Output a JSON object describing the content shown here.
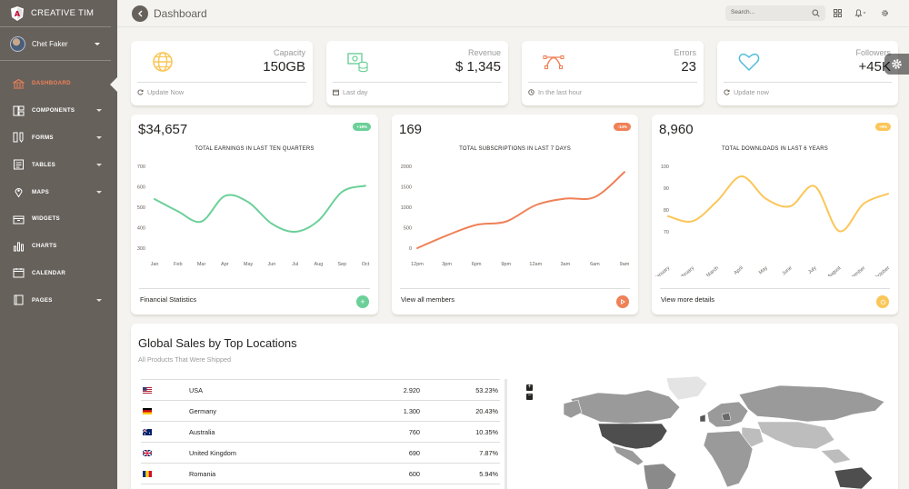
{
  "brand": {
    "name": "CREATIVE TIM",
    "accent": "#ef8157"
  },
  "user": {
    "name": "Chet Faker"
  },
  "sidebar": {
    "items": [
      {
        "label": "DASHBOARD",
        "icon": "bank-icon",
        "active": true,
        "has_caret": false
      },
      {
        "label": "COMPONENTS",
        "icon": "layout-icon",
        "active": false,
        "has_caret": true
      },
      {
        "label": "FORMS",
        "icon": "ruler-pencil-icon",
        "active": false,
        "has_caret": true
      },
      {
        "label": "TABLES",
        "icon": "paper-icon",
        "active": false,
        "has_caret": true
      },
      {
        "label": "MAPS",
        "icon": "pin-icon",
        "active": false,
        "has_caret": true
      },
      {
        "label": "WIDGETS",
        "icon": "box-icon",
        "active": false,
        "has_caret": false
      },
      {
        "label": "CHARTS",
        "icon": "chart-bar-icon",
        "active": false,
        "has_caret": false
      },
      {
        "label": "CALENDAR",
        "icon": "calendar-icon",
        "active": false,
        "has_caret": false
      },
      {
        "label": "PAGES",
        "icon": "book-icon",
        "active": false,
        "has_caret": true
      }
    ]
  },
  "header": {
    "title": "Dashboard",
    "search_placeholder": "Search..."
  },
  "stats": [
    {
      "label": "Capacity",
      "value": "150GB",
      "footer": "Update Now",
      "icon": "globe-icon",
      "icon_color": "#fbc658",
      "footer_icon": "refresh-icon"
    },
    {
      "label": "Revenue",
      "value": "$ 1,345",
      "footer": "Last day",
      "icon": "money-coins-icon",
      "icon_color": "#6bd098",
      "footer_icon": "calendar-icon"
    },
    {
      "label": "Errors",
      "value": "23",
      "footer": "In the last hour",
      "icon": "vector-icon",
      "icon_color": "#ef8157",
      "footer_icon": "clock-icon"
    },
    {
      "label": "Followers",
      "value": "+45K",
      "footer": "Update now",
      "icon": "heart-icon",
      "icon_color": "#51bcda",
      "footer_icon": "refresh-icon"
    }
  ],
  "charts": {
    "earnings": {
      "amount": "$34,657",
      "badge": "+18%",
      "badge_color": "#6bd098",
      "footer": "Financial Statistics",
      "button_color": "#6bd098",
      "button_icon": "plus-icon"
    },
    "subscriptions": {
      "amount": "169",
      "badge": "-14%",
      "badge_color": "#ef8157",
      "footer": "View all members",
      "button_color": "#ef8157",
      "button_icon": "play-icon"
    },
    "downloads": {
      "amount": "8,960",
      "badge": "+6%",
      "badge_color": "#fbc658",
      "footer": "View more details",
      "button_color": "#fbc658",
      "button_icon": "settings-icon"
    }
  },
  "chart_data": [
    {
      "type": "line",
      "title": "TOTAL EARNINGS IN LAST TEN QUARTERS",
      "categories": [
        "Jan",
        "Feb",
        "Mar",
        "Apr",
        "May",
        "Jun",
        "Jul",
        "Aug",
        "Sep",
        "Oct"
      ],
      "series": [
        {
          "values": [
            540,
            480,
            430,
            555,
            525,
            420,
            380,
            435,
            575,
            605
          ]
        }
      ],
      "yticks": [
        700,
        600,
        500,
        400,
        300
      ],
      "ylim": [
        300,
        700
      ],
      "color": "#6bd098"
    },
    {
      "type": "line",
      "title": "TOTAL SUBSCRIPTIONS IN LAST 7 DAYS",
      "categories": [
        "12pm",
        "3pm",
        "6pm",
        "9pm",
        "12am",
        "3am",
        "6am",
        "9am"
      ],
      "series": [
        {
          "values": [
            0,
            310,
            570,
            650,
            1050,
            1210,
            1250,
            1860
          ]
        }
      ],
      "yticks": [
        2000,
        1500,
        1000,
        500,
        0
      ],
      "ylim": [
        0,
        2000
      ],
      "color": "#ef8157"
    },
    {
      "type": "line",
      "title": "TOTAL DOWNLOADS IN LAST 6 YEARS",
      "categories": [
        "January",
        "February",
        "March",
        "April",
        "May",
        "June",
        "July",
        "August",
        "September",
        "October"
      ],
      "series": [
        {
          "values": [
            80,
            78,
            86,
            96,
            87,
            84,
            92,
            74,
            85,
            89
          ]
        }
      ],
      "yticks": [
        100,
        90,
        80,
        70
      ],
      "ylim": [
        65,
        100
      ],
      "color": "#fbc658"
    }
  ],
  "global_sales": {
    "title": "Global Sales by Top Locations",
    "subtitle": "All Products That Were Shipped",
    "rows": [
      {
        "flag": "us-flag-icon",
        "country": "USA",
        "sales": "2.920",
        "pct": "53.23%"
      },
      {
        "flag": "de-flag-icon",
        "country": "Germany",
        "sales": "1.300",
        "pct": "20.43%"
      },
      {
        "flag": "au-flag-icon",
        "country": "Australia",
        "sales": "760",
        "pct": "10.35%"
      },
      {
        "flag": "gb-flag-icon",
        "country": "United Kingdom",
        "sales": "690",
        "pct": "7.87%"
      },
      {
        "flag": "ro-flag-icon",
        "country": "Romania",
        "sales": "600",
        "pct": "5.94%"
      }
    ],
    "zoom_in": "+",
    "zoom_out": "−"
  }
}
